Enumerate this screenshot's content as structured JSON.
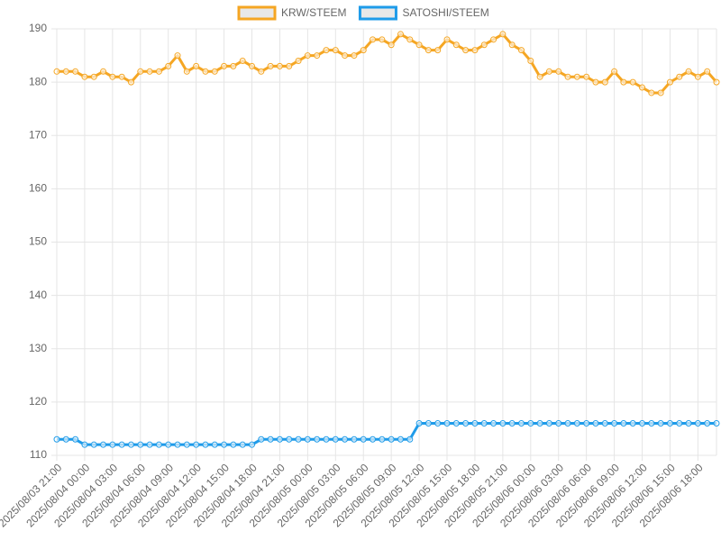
{
  "chart_data": {
    "type": "line",
    "categories": [
      "2025/08/03 21:00",
      null,
      null,
      "2025/08/04 00:00",
      null,
      null,
      "2025/08/04 03:00",
      null,
      null,
      "2025/08/04 06:00",
      null,
      null,
      "2025/08/04 09:00",
      null,
      null,
      "2025/08/04 12:00",
      null,
      null,
      "2025/08/04 15:00",
      null,
      null,
      "2025/08/04 18:00",
      null,
      null,
      "2025/08/04 21:00",
      null,
      null,
      "2025/08/05 00:00",
      null,
      null,
      "2025/08/05 03:00",
      null,
      null,
      "2025/08/05 06:00",
      null,
      null,
      "2025/08/05 09:00",
      null,
      null,
      "2025/08/05 12:00",
      null,
      null,
      "2025/08/05 15:00",
      null,
      null,
      "2025/08/05 18:00",
      null,
      null,
      "2025/08/05 21:00",
      null,
      null,
      "2025/08/06 00:00",
      null,
      null,
      "2025/08/06 03:00",
      null,
      null,
      "2025/08/06 06:00",
      null,
      null,
      "2025/08/06 09:00",
      null,
      null,
      "2025/08/06 12:00",
      null,
      null,
      "2025/08/06 15:00",
      null,
      null,
      "2025/08/06 18:00",
      null,
      null
    ],
    "series": [
      {
        "name": "KRW/STEEM",
        "color": "#f5a623",
        "values": [
          182,
          182,
          182,
          181,
          181,
          182,
          181,
          181,
          180,
          182,
          182,
          182,
          183,
          185,
          182,
          183,
          182,
          182,
          183,
          183,
          184,
          183,
          182,
          183,
          183,
          183,
          184,
          185,
          185,
          186,
          186,
          185,
          185,
          186,
          188,
          188,
          187,
          189,
          188,
          187,
          186,
          186,
          188,
          187,
          186,
          186,
          187,
          188,
          189,
          187,
          186,
          184,
          181,
          182,
          182,
          181,
          181,
          181,
          180,
          180,
          182,
          180,
          180,
          179,
          178,
          178,
          180,
          181,
          182,
          181,
          182,
          180
        ]
      },
      {
        "name": "SATOSHI/STEEM",
        "color": "#1e9be9",
        "values": [
          113,
          113,
          113,
          112,
          112,
          112,
          112,
          112,
          112,
          112,
          112,
          112,
          112,
          112,
          112,
          112,
          112,
          112,
          112,
          112,
          112,
          112,
          113,
          113,
          113,
          113,
          113,
          113,
          113,
          113,
          113,
          113,
          113,
          113,
          113,
          113,
          113,
          113,
          113,
          116,
          116,
          116,
          116,
          116,
          116,
          116,
          116,
          116,
          116,
          116,
          116,
          116,
          116,
          116,
          116,
          116,
          116,
          116,
          116,
          116,
          116,
          116,
          116,
          116,
          116,
          116,
          116,
          116,
          116,
          116,
          116,
          116
        ]
      }
    ],
    "ylim": [
      110,
      190
    ],
    "yticks": [
      110,
      120,
      130,
      140,
      150,
      160,
      170,
      180,
      190
    ],
    "grid": true,
    "legend": "top"
  }
}
